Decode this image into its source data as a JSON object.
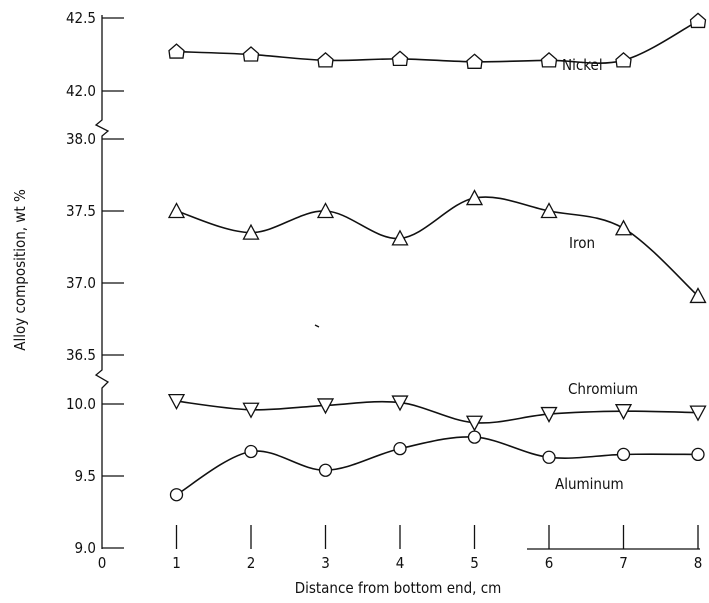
{
  "chart_data": {
    "type": "line",
    "xlabel": "Distance from bottom end, cm",
    "ylabel": "Alloy composition, wt %",
    "x_ticks": [
      "0",
      "1",
      "2",
      "3",
      "4",
      "5",
      "6",
      "7",
      "8"
    ],
    "xlim": [
      0,
      8
    ],
    "y_axis_segments": [
      {
        "range": [
          42.0,
          42.5
        ],
        "ticks": [
          "42.0",
          "42.5"
        ]
      },
      {
        "range": [
          36.5,
          38.0
        ],
        "ticks": [
          "36.5",
          "37.0",
          "37.5",
          "38.0"
        ]
      },
      {
        "range": [
          9.0,
          10.0
        ],
        "ticks": [
          "9.0",
          "9.5",
          "10.0"
        ]
      }
    ],
    "axis_breaks": [
      "between 42.0 and 38.0",
      "between 36.5 and 10.0"
    ],
    "grid": false,
    "series": [
      {
        "name": "Nickel",
        "marker": "pentagon",
        "x": [
          1,
          2,
          3,
          4,
          5,
          6,
          7,
          8
        ],
        "values": [
          42.27,
          42.25,
          42.21,
          42.22,
          42.2,
          42.21,
          42.21,
          42.48
        ]
      },
      {
        "name": "Iron",
        "marker": "triangle-up",
        "x": [
          1,
          2,
          3,
          4,
          5,
          6,
          7,
          8
        ],
        "values": [
          37.5,
          37.35,
          37.5,
          37.31,
          37.59,
          37.5,
          37.38,
          36.91
        ]
      },
      {
        "name": "Chromium",
        "marker": "triangle-down",
        "x": [
          1,
          2,
          3,
          4,
          5,
          6,
          7,
          8
        ],
        "values": [
          10.02,
          9.96,
          9.99,
          10.01,
          9.87,
          9.93,
          9.95,
          9.94
        ]
      },
      {
        "name": "Aluminum",
        "marker": "circle",
        "x": [
          1,
          2,
          3,
          4,
          5,
          6,
          7,
          8
        ],
        "values": [
          9.37,
          9.67,
          9.54,
          9.69,
          9.77,
          9.63,
          9.65,
          9.65
        ]
      }
    ]
  }
}
